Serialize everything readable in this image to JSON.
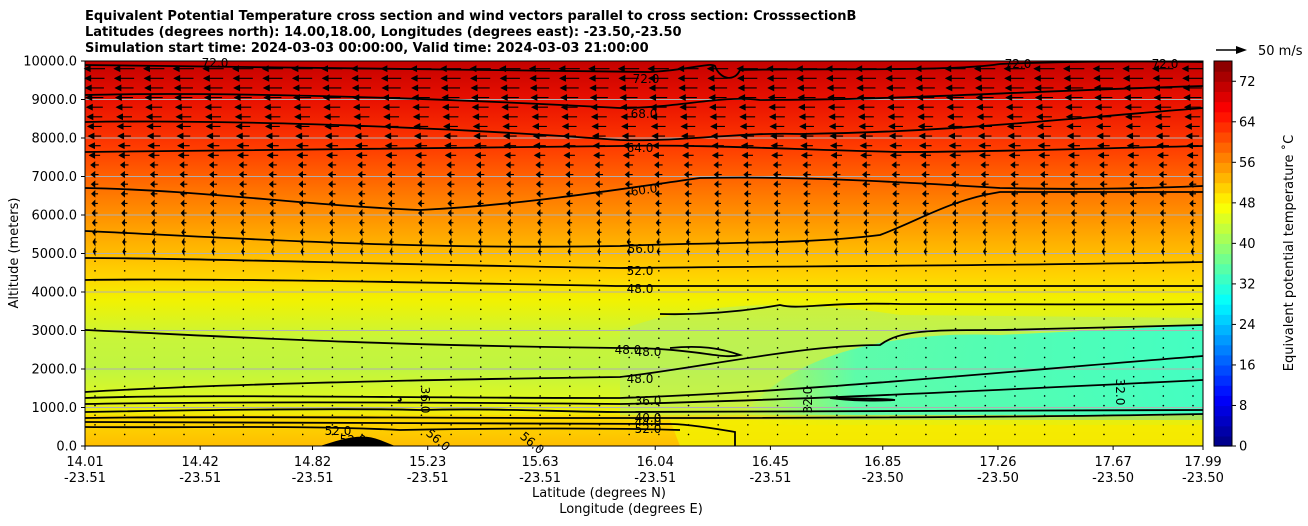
{
  "chart_data": {
    "type": "contour",
    "title_lines": [
      "Equivalent Potential Temperature cross section and wind vectors parallel to cross section: CrosssectionB",
      "Latitudes (degrees north): 14.00,18.00, Longitudes (degrees east): -23.50,-23.50",
      "Simulation start time: 2024-03-03 00:00:00, Valid time: 2024-03-03 21:00:00"
    ],
    "ylabel": "Altitude (meters)",
    "xlabel_lat": "Latitude (degrees N)",
    "xlabel_lon": "Longitude (degrees E)",
    "ylim": [
      0,
      10000
    ],
    "yticks": [
      "0.0",
      "1000.0",
      "2000.0",
      "3000.0",
      "4000.0",
      "5000.0",
      "6000.0",
      "7000.0",
      "8000.0",
      "9000.0",
      "10000.0"
    ],
    "ytick_values": [
      0,
      1000,
      2000,
      3000,
      4000,
      5000,
      6000,
      7000,
      8000,
      9000,
      10000
    ],
    "xticks": [
      {
        "lat": "14.01",
        "lon": "-23.51"
      },
      {
        "lat": "14.42",
        "lon": "-23.51"
      },
      {
        "lat": "14.82",
        "lon": "-23.51"
      },
      {
        "lat": "15.23",
        "lon": "-23.51"
      },
      {
        "lat": "15.63",
        "lon": "-23.51"
      },
      {
        "lat": "16.04",
        "lon": "-23.51"
      },
      {
        "lat": "16.45",
        "lon": "-23.51"
      },
      {
        "lat": "16.85",
        "lon": "-23.50"
      },
      {
        "lat": "17.26",
        "lon": "-23.50"
      },
      {
        "lat": "17.67",
        "lon": "-23.50"
      },
      {
        "lat": "17.99",
        "lon": "-23.50"
      }
    ],
    "xlim": [
      14.01,
      17.99
    ],
    "grid": "horizontal",
    "colorbar": {
      "label": "Equivalent potential temperature ˚C",
      "range": [
        0,
        76
      ],
      "ticks": [
        "0",
        "8",
        "16",
        "24",
        "32",
        "40",
        "48",
        "56",
        "64",
        "72"
      ],
      "tick_values": [
        0,
        8,
        16,
        24,
        32,
        40,
        48,
        56,
        64,
        72
      ],
      "colormap": "jet"
    },
    "quiver_key": {
      "label": "50 m/s",
      "value": 50
    },
    "contour_labels": [
      "72.0",
      "68.0",
      "64.0",
      "60.0",
      "56.0",
      "52.0",
      "48.0",
      "48.0",
      "48.0",
      "48.0",
      "36.0",
      "40.0",
      "44.0",
      "52.0",
      "52.0",
      "56.0",
      "56.0",
      "52.0",
      "36.0",
      "32.0",
      "32.0",
      "72.0",
      "72.0",
      "72.0"
    ],
    "equivalent_potential_temperature_profile": [
      {
        "altitude": 0,
        "theta_e": 56
      },
      {
        "altitude": 500,
        "theta_e": 52
      },
      {
        "altitude": 1000,
        "theta_e": 44
      },
      {
        "altitude": 2000,
        "theta_e": 46
      },
      {
        "altitude": 3000,
        "theta_e": 48
      },
      {
        "altitude": 4000,
        "theta_e": 48
      },
      {
        "altitude": 5000,
        "theta_e": 52
      },
      {
        "altitude": 6000,
        "theta_e": 58
      },
      {
        "altitude": 7000,
        "theta_e": 62
      },
      {
        "altitude": 8000,
        "theta_e": 66
      },
      {
        "altitude": 9000,
        "theta_e": 70
      },
      {
        "altitude": 10000,
        "theta_e": 74
      }
    ],
    "low_level_min": {
      "lat_from": 16.3,
      "theta_e_min": 32
    }
  }
}
